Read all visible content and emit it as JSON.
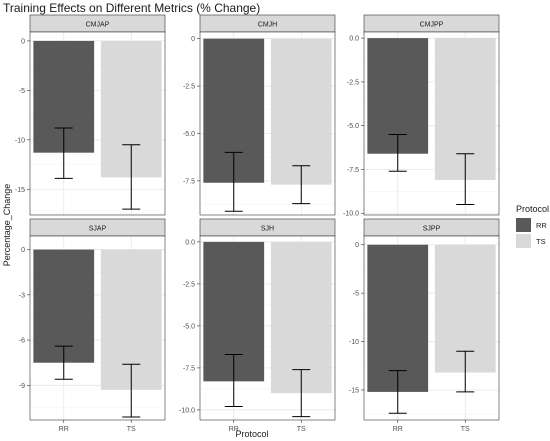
{
  "chart_data": {
    "type": "bar",
    "title": "Training Effects on Different Metrics (% Change)",
    "xlabel": "Protocol",
    "ylabel": "Percentage_Change",
    "categories": [
      "RR",
      "TS"
    ],
    "grid": true,
    "legend": {
      "title": "Protocol",
      "position": "right",
      "items": [
        {
          "label": "RR",
          "color": "#595959"
        },
        {
          "label": "TS",
          "color": "#d9d9d9"
        }
      ]
    },
    "facets": [
      {
        "name": "CMJAP",
        "ylim": [
          -17.6,
          0.9
        ],
        "ticks": [
          0,
          -5,
          -10,
          -15
        ],
        "tick_labels": [
          "0",
          "-5",
          "-10",
          "-15"
        ],
        "values": [
          -11.3,
          -13.8
        ],
        "error_low": [
          -13.9,
          -17.0
        ],
        "error_high": [
          -8.8,
          -10.5
        ]
      },
      {
        "name": "CMJH",
        "ylim": [
          -9.3,
          0.35
        ],
        "ticks": [
          0,
          -2.5,
          -5,
          -7.5
        ],
        "tick_labels": [
          "0",
          "-2.5",
          "-5.0",
          "-7.5"
        ],
        "values": [
          -7.6,
          -7.7
        ],
        "error_low": [
          -9.1,
          -8.7
        ],
        "error_high": [
          -6.0,
          -6.7
        ]
      },
      {
        "name": "CMJPP",
        "ylim": [
          -10.1,
          0.35
        ],
        "ticks": [
          0,
          -2.5,
          -5,
          -7.5,
          -10
        ],
        "tick_labels": [
          "0.0",
          "-2.5",
          "-5.0",
          "-7.5",
          "-10.0"
        ],
        "values": [
          -6.6,
          -8.1
        ],
        "error_low": [
          -7.6,
          -9.5
        ],
        "error_high": [
          -5.5,
          -6.6
        ]
      },
      {
        "name": "SJAP",
        "ylim": [
          -11.3,
          0.9
        ],
        "ticks": [
          0,
          -3,
          -6,
          -9
        ],
        "tick_labels": [
          "0",
          "-3",
          "-6",
          "-9"
        ],
        "values": [
          -7.5,
          -9.3
        ],
        "error_low": [
          -8.6,
          -11.1
        ],
        "error_high": [
          -6.4,
          -7.6
        ]
      },
      {
        "name": "SJH",
        "ylim": [
          -10.6,
          0.35
        ],
        "ticks": [
          0,
          -2.5,
          -5,
          -7.5,
          -10
        ],
        "tick_labels": [
          "0.0",
          "-2.5",
          "-5.0",
          "-7.5",
          "-10.0"
        ],
        "values": [
          -8.3,
          -9.0
        ],
        "error_low": [
          -9.8,
          -10.4
        ],
        "error_high": [
          -6.7,
          -7.6
        ]
      },
      {
        "name": "SJPP",
        "ylim": [
          -18.1,
          0.9
        ],
        "ticks": [
          0,
          -5,
          -10,
          -15
        ],
        "tick_labels": [
          "0",
          "-5",
          "-10",
          "-15"
        ],
        "values": [
          -15.2,
          -13.2
        ],
        "error_low": [
          -17.4,
          -15.2
        ],
        "error_high": [
          -13.0,
          -11.0
        ]
      }
    ]
  }
}
